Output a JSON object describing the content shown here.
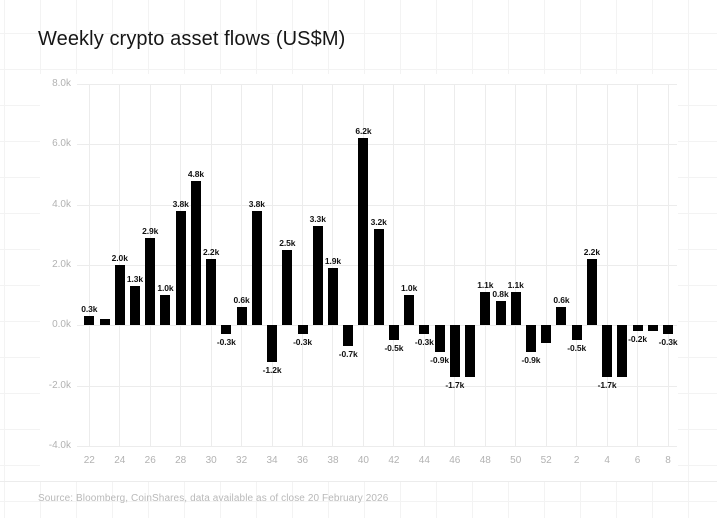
{
  "header": {
    "title": "Weekly crypto asset flows (US$M)"
  },
  "footer": {
    "source": "Source: Bloomberg, CoinShares, data available as of close 20 February 2026"
  },
  "colors": {
    "bar": "#000000",
    "title_text": "#161616",
    "axis_label_text": "#b2b2b2",
    "value_label_text": "#121212",
    "plot_gridline": "#ececec",
    "page_grid_line": "#f3f3f3",
    "background": "#ffffff",
    "source_text": "#b9b9b9"
  },
  "chart_data": {
    "type": "bar",
    "title": "Weekly crypto asset flows (US$M)",
    "xlabel": "",
    "ylabel": "",
    "unit_note": "values shown in thousands of US$M (k)",
    "ylim_k": [
      -4,
      8
    ],
    "grid": true,
    "legend_position": "none",
    "y_tick_labels": [
      "8.0k",
      "6.0k",
      "4.0k",
      "2.0k",
      "0.0k",
      "-2.0k",
      "-4.0k"
    ],
    "y_tick_values_k": [
      8,
      6,
      4,
      2,
      0,
      -2,
      -4
    ],
    "x_tick_labels": [
      "22",
      "24",
      "26",
      "28",
      "30",
      "32",
      "34",
      "36",
      "38",
      "40",
      "42",
      "44",
      "46",
      "48",
      "50",
      "52",
      "2",
      "4",
      "6",
      "8"
    ],
    "bars": [
      {
        "week": "22",
        "value_k": 0.3,
        "label": "0.3k",
        "tick": true
      },
      {
        "week": "23",
        "value_k": 0.2,
        "label": "",
        "tick": false
      },
      {
        "week": "24",
        "value_k": 2.0,
        "label": "2.0k",
        "tick": true
      },
      {
        "week": "25",
        "value_k": 1.3,
        "label": "1.3k",
        "tick": false
      },
      {
        "week": "26",
        "value_k": 2.9,
        "label": "2.9k",
        "tick": true
      },
      {
        "week": "27",
        "value_k": 1.0,
        "label": "1.0k",
        "tick": false
      },
      {
        "week": "28",
        "value_k": 3.8,
        "label": "3.8k",
        "tick": true
      },
      {
        "week": "29",
        "value_k": 4.8,
        "label": "4.8k",
        "tick": false
      },
      {
        "week": "30",
        "value_k": 2.2,
        "label": "2.2k",
        "tick": true
      },
      {
        "week": "31",
        "value_k": -0.3,
        "label": "-0.3k",
        "tick": false
      },
      {
        "week": "32",
        "value_k": 0.6,
        "label": "0.6k",
        "tick": true
      },
      {
        "week": "33",
        "value_k": 3.8,
        "label": "3.8k",
        "tick": false
      },
      {
        "week": "34",
        "value_k": -1.2,
        "label": "-1.2k",
        "tick": true
      },
      {
        "week": "35",
        "value_k": 2.5,
        "label": "2.5k",
        "tick": false
      },
      {
        "week": "36",
        "value_k": -0.3,
        "label": "-0.3k",
        "tick": true
      },
      {
        "week": "37",
        "value_k": 3.3,
        "label": "3.3k",
        "tick": false
      },
      {
        "week": "38",
        "value_k": 1.9,
        "label": "1.9k",
        "tick": true
      },
      {
        "week": "39",
        "value_k": -0.7,
        "label": "-0.7k",
        "tick": false
      },
      {
        "week": "40",
        "value_k": 6.2,
        "label": "6.2k",
        "tick": true
      },
      {
        "week": "41",
        "value_k": 3.2,
        "label": "3.2k",
        "tick": false
      },
      {
        "week": "42",
        "value_k": -0.5,
        "label": "-0.5k",
        "tick": true
      },
      {
        "week": "43",
        "value_k": 1.0,
        "label": "1.0k",
        "tick": false
      },
      {
        "week": "44",
        "value_k": -0.3,
        "label": "-0.3k",
        "tick": true
      },
      {
        "week": "45",
        "value_k": -0.9,
        "label": "-0.9k",
        "tick": false
      },
      {
        "week": "46",
        "value_k": -1.7,
        "label": "-1.7k",
        "tick": true
      },
      {
        "week": "47",
        "value_k": -1.7,
        "label": "",
        "tick": false
      },
      {
        "week": "48",
        "value_k": 1.1,
        "label": "1.1k",
        "tick": true
      },
      {
        "week": "49",
        "value_k": 0.8,
        "label": "0.8k",
        "tick": false
      },
      {
        "week": "50",
        "value_k": 1.1,
        "label": "1.1k",
        "tick": true
      },
      {
        "week": "51",
        "value_k": -0.9,
        "label": "-0.9k",
        "tick": false
      },
      {
        "week": "52",
        "value_k": -0.6,
        "label": "",
        "tick": true
      },
      {
        "week": "1",
        "value_k": 0.6,
        "label": "0.6k",
        "tick": false
      },
      {
        "week": "2",
        "value_k": -0.5,
        "label": "-0.5k",
        "tick": true
      },
      {
        "week": "3",
        "value_k": 2.2,
        "label": "2.2k",
        "tick": false
      },
      {
        "week": "4",
        "value_k": -1.7,
        "label": "-1.7k",
        "tick": true
      },
      {
        "week": "5",
        "value_k": -1.7,
        "label": "",
        "tick": false
      },
      {
        "week": "6",
        "value_k": -0.2,
        "label": "-0.2k",
        "tick": true
      },
      {
        "week": "7",
        "value_k": -0.2,
        "label": "",
        "tick": false
      },
      {
        "week": "8",
        "value_k": -0.3,
        "label": "-0.3k",
        "tick": true
      }
    ]
  }
}
